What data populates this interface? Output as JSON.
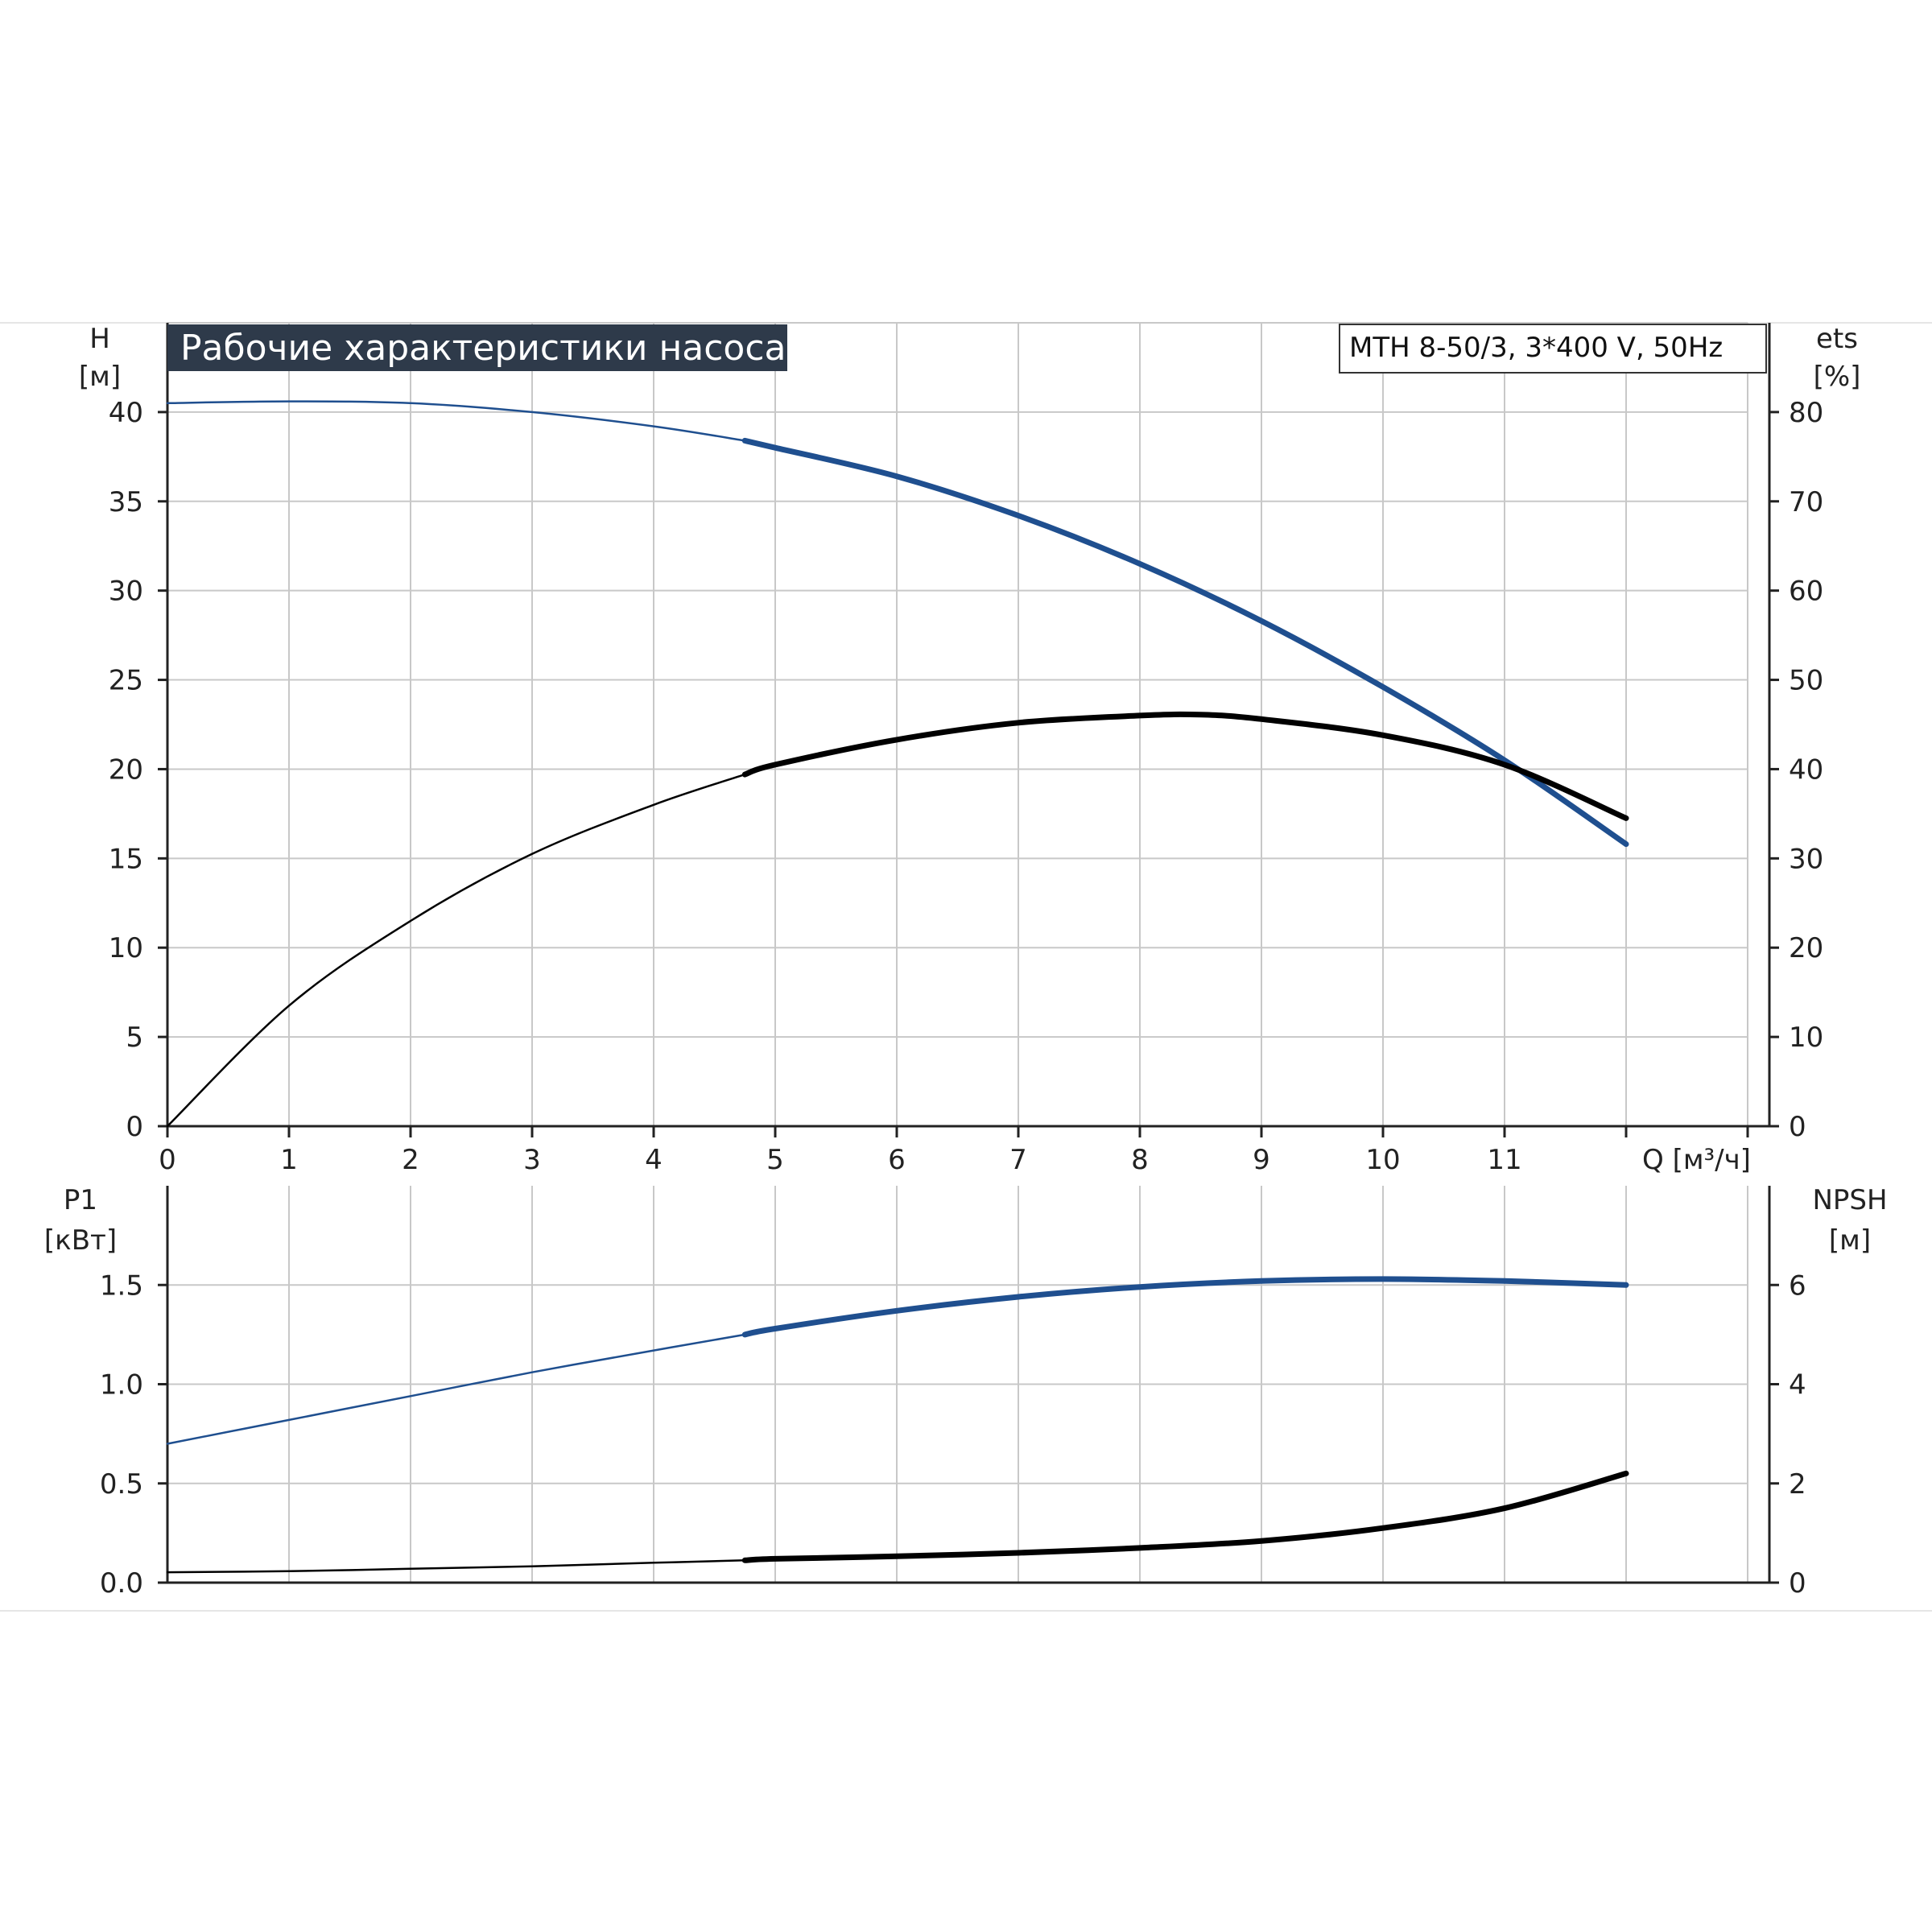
{
  "colors": {
    "grid": "#c8c8c8",
    "axis": "#222222",
    "title_bg": "#2e3a4a",
    "blue_curve": "#1f4f8f",
    "black_curve": "#000000",
    "separator": "#e6e6e6"
  },
  "header": {
    "title": "Рабочие характеристики насоса",
    "model": "MTH 8-50/3, 3*400 V, 50Hz"
  },
  "chart_data": [
    {
      "id": "upper",
      "type": "line",
      "left_axis": {
        "label": "H",
        "unit": "[м]",
        "range": [
          0,
          45
        ],
        "ticks": [
          0,
          5,
          10,
          15,
          20,
          25,
          30,
          35,
          40
        ]
      },
      "right_axis": {
        "label": "ets",
        "unit": "[%]",
        "range": [
          0,
          90
        ],
        "ticks": [
          0,
          10,
          20,
          30,
          40,
          50,
          60,
          70,
          80
        ]
      },
      "x_axis": {
        "label": "Q [м³/ч]",
        "range": [
          0,
          13
        ],
        "ticks": [
          0,
          1,
          2,
          3,
          4,
          5,
          6,
          7,
          8,
          9,
          10,
          11
        ]
      },
      "grid": true,
      "series": [
        {
          "axis": "left",
          "color": "blue",
          "thick_from": 4.75,
          "x": [
            0,
            1,
            2,
            3,
            4,
            4.75,
            5,
            6,
            7,
            8,
            9,
            10,
            11,
            12
          ],
          "y": [
            40.5,
            40.6,
            40.5,
            40.0,
            39.2,
            38.4,
            38.0,
            36.4,
            34.2,
            31.5,
            28.3,
            24.6,
            20.5,
            15.8
          ]
        },
        {
          "axis": "right",
          "color": "black",
          "thick_from": 4.75,
          "x": [
            0,
            1,
            2,
            3,
            4,
            4.75,
            5,
            6,
            7,
            8,
            8.5,
            9,
            10,
            11,
            12
          ],
          "y": [
            0,
            13.5,
            23,
            30.5,
            36,
            39.4,
            40.5,
            43.3,
            45.2,
            46.0,
            46.1,
            45.6,
            43.8,
            40.5,
            34.5
          ]
        }
      ]
    },
    {
      "id": "lower",
      "type": "line",
      "left_axis": {
        "label": "P1",
        "unit": "[кВт]",
        "range": [
          0,
          2.0
        ],
        "ticks": [
          "0.0",
          "0.5",
          "1.0",
          "1.5"
        ]
      },
      "right_axis": {
        "label": "NPSH",
        "unit": "[м]",
        "range": [
          0,
          8
        ],
        "ticks": [
          0,
          2,
          4,
          6
        ]
      },
      "x_axis": {
        "range": [
          0,
          13
        ]
      },
      "grid": true,
      "series": [
        {
          "axis": "left",
          "color": "blue",
          "thick_from": 4.75,
          "x": [
            0,
            1,
            2,
            3,
            4,
            4.75,
            5,
            6,
            7,
            8,
            9,
            10,
            11,
            12
          ],
          "y": [
            0.7,
            0.82,
            0.94,
            1.06,
            1.17,
            1.25,
            1.28,
            1.37,
            1.44,
            1.49,
            1.52,
            1.53,
            1.52,
            1.5
          ]
        },
        {
          "axis": "right",
          "color": "black",
          "thick_from": 4.75,
          "x": [
            0,
            1,
            2,
            3,
            4,
            4.75,
            5,
            6,
            7,
            8,
            9,
            10,
            11,
            12
          ],
          "y": [
            0.21,
            0.23,
            0.28,
            0.33,
            0.4,
            0.45,
            0.48,
            0.53,
            0.6,
            0.7,
            0.84,
            1.1,
            1.5,
            2.2
          ]
        }
      ]
    }
  ]
}
